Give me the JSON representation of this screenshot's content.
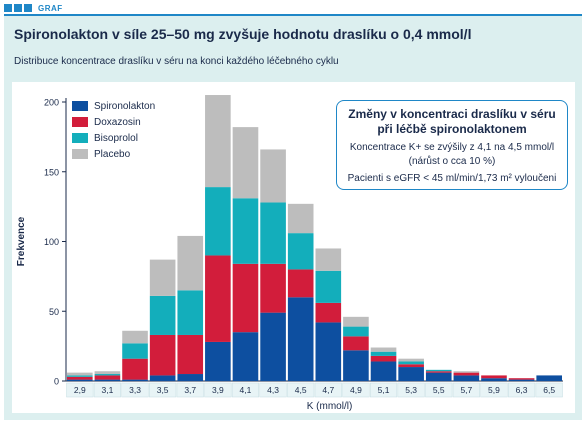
{
  "header": {
    "tag": "GRAF",
    "title": "Spironolakton v síle 25–50 mg zvyšuje hodnotu draslíku o 0,4 mmol/l",
    "subtitle": "Distribuce koncentrace draslíku v séru na konci každého léčebného cyklu"
  },
  "info_box": {
    "title_line1": "Změny v koncentraci draslíku v séru",
    "title_line2": "při léčbě spironolaktonem",
    "line1": "Koncentrace K+ se zvýšily z 4,1 na 4,5 mmol/l",
    "line2": "(nárůst o cca 10 %)",
    "line3": "Pacienti s eGFR < 45 ml/min/1,73 m² vyloučeni"
  },
  "colors": {
    "accent": "#1f87c7",
    "panel": "#dcefef",
    "spironolakton": "#0d4fa0",
    "doxazosin": "#d21d3b",
    "bisoprolol": "#13aebb",
    "placebo": "#bdbdbd"
  },
  "chart_data": {
    "type": "bar",
    "stacked": true,
    "xlabel": "K (mmol/l)",
    "ylabel": "Frekvence",
    "ylim": [
      0,
      200
    ],
    "yticks": [
      "0",
      "50",
      "100",
      "150",
      "200"
    ],
    "categories": [
      "2,9",
      "3,1",
      "3,3",
      "3,5",
      "3,7",
      "3,9",
      "4,1",
      "4,3",
      "4,5",
      "4,7",
      "4,9",
      "5,1",
      "5,3",
      "5,5",
      "5,7",
      "5,9",
      "6,3",
      "6,5"
    ],
    "legend_position": "top-left",
    "series": [
      {
        "name": "Spironolakton",
        "color": "#0d4fa0",
        "values": [
          1,
          1,
          1,
          4,
          5,
          28,
          35,
          49,
          60,
          42,
          22,
          14,
          10,
          6,
          4,
          2,
          1,
          4
        ]
      },
      {
        "name": "Doxazosin",
        "color": "#d21d3b",
        "values": [
          2,
          3,
          15,
          29,
          28,
          62,
          49,
          35,
          20,
          14,
          10,
          4,
          2,
          1,
          2,
          2,
          1,
          0
        ]
      },
      {
        "name": "Bisoprolol",
        "color": "#13aebb",
        "values": [
          1,
          1,
          11,
          28,
          32,
          49,
          47,
          44,
          26,
          23,
          7,
          3,
          2,
          1,
          0,
          0,
          0,
          0
        ]
      },
      {
        "name": "Placebo",
        "color": "#bdbdbd",
        "values": [
          2,
          2,
          9,
          26,
          39,
          66,
          51,
          38,
          21,
          16,
          7,
          3,
          2,
          0,
          1,
          0,
          0,
          0
        ]
      }
    ]
  }
}
